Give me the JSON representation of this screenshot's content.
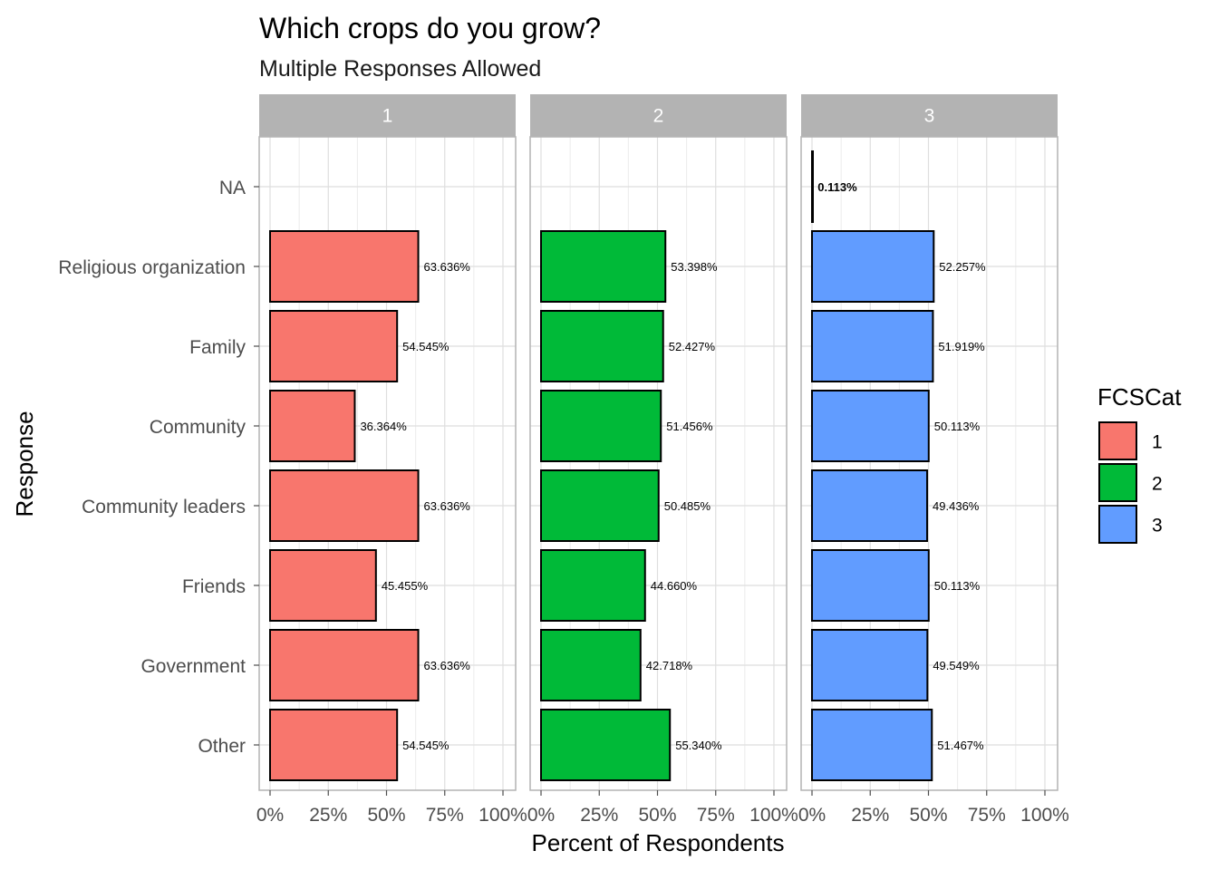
{
  "chart_data": {
    "type": "bar",
    "orientation": "horizontal",
    "title": "Which crops do you grow?",
    "subtitle": "Multiple Responses Allowed",
    "xlabel": "Percent of Respondents",
    "ylabel": "Response",
    "xlim": [
      0,
      100
    ],
    "x_ticks": [
      "0%",
      "25%",
      "50%",
      "75%",
      "100%"
    ],
    "grid": true,
    "legend": {
      "title": "FCSCat",
      "placement": "right",
      "entries": [
        "1",
        "2",
        "3"
      ]
    },
    "categories": [
      "NA",
      "Religious organization",
      "Family",
      "Community",
      "Community leaders",
      "Friends",
      "Government",
      "Other"
    ],
    "panels": [
      {
        "label": "1",
        "color": "#F8766D",
        "values": [
          null,
          63.636,
          54.545,
          36.364,
          63.636,
          45.455,
          63.636,
          54.545
        ],
        "labels": [
          "",
          "63.636%",
          "54.545%",
          "36.364%",
          "63.636%",
          "45.455%",
          "63.636%",
          "54.545%"
        ]
      },
      {
        "label": "2",
        "color": "#00BA38",
        "values": [
          null,
          53.398,
          52.427,
          51.456,
          50.485,
          44.66,
          42.718,
          55.34
        ],
        "labels": [
          "",
          "53.398%",
          "52.427%",
          "51.456%",
          "50.485%",
          "44.660%",
          "42.718%",
          "55.340%"
        ]
      },
      {
        "label": "3",
        "color": "#619CFF",
        "values": [
          0.113,
          52.257,
          51.919,
          50.113,
          49.436,
          50.113,
          49.549,
          51.467
        ],
        "labels": [
          "0.113%",
          "52.257%",
          "51.919%",
          "50.113%",
          "49.436%",
          "50.113%",
          "49.549%",
          "51.467%"
        ]
      }
    ]
  }
}
